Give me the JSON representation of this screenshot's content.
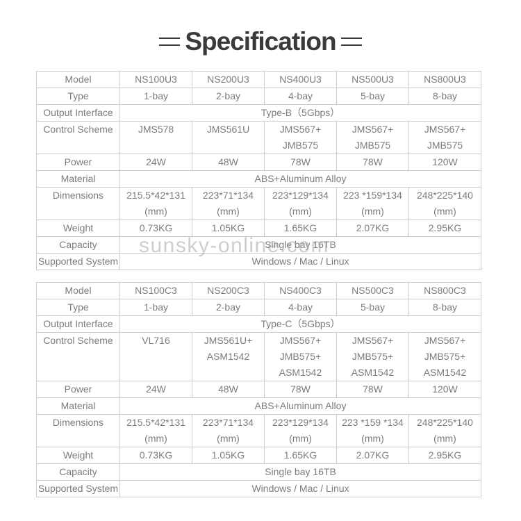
{
  "title": {
    "text": "Specification"
  },
  "watermark": "sunsky-online.com",
  "colors": {
    "title_text": "#3a3a3c",
    "table_border": "#cbcbcb",
    "cell_text": "#7b7c7e",
    "watermark_text": "#a5a5a5",
    "background": "#ffffff"
  },
  "tables": [
    {
      "model": {
        "label": "Model",
        "values": [
          "NS100U3",
          "NS200U3",
          "NS400U3",
          "NS500U3",
          "NS800U3"
        ]
      },
      "type": {
        "label": "Type",
        "values": [
          "1-bay",
          "2-bay",
          "4-bay",
          "5-bay",
          "8-bay"
        ]
      },
      "output_interface": {
        "label": "Output Interface",
        "value": "Type-B（5Gbps）"
      },
      "control_scheme": {
        "label": "Control Scheme",
        "values": [
          "JMS578",
          "JMS561U",
          "JMS567+\nJMB575",
          "JMS567+\nJMB575",
          "JMS567+\nJMB575"
        ]
      },
      "power": {
        "label": "Power",
        "values": [
          "24W",
          "48W",
          "78W",
          "78W",
          "120W"
        ]
      },
      "material": {
        "label": "Material",
        "value": "ABS+Aluminum Alloy"
      },
      "dimensions": {
        "label": "Dimensions",
        "values": [
          "215.5*42*131\n(mm)",
          "223*71*134\n(mm)",
          "223*129*134\n(mm)",
          "223 *159*134\n(mm)",
          "248*225*140\n(mm)"
        ]
      },
      "weight": {
        "label": "Weight",
        "values": [
          "0.73KG",
          "1.05KG",
          "1.65KG",
          "2.07KG",
          "2.95KG"
        ]
      },
      "capacity": {
        "label": "Capacity",
        "value": "Single bay 16TB"
      },
      "supported_system": {
        "label": "Supported System",
        "value": "Windows / Mac / Linux"
      }
    },
    {
      "model": {
        "label": "Model",
        "values": [
          "NS100C3",
          "NS200C3",
          "NS400C3",
          "NS500C3",
          "NS800C3"
        ]
      },
      "type": {
        "label": "Type",
        "values": [
          "1-bay",
          "2-bay",
          "4-bay",
          "5-bay",
          "8-bay"
        ]
      },
      "output_interface": {
        "label": "Output Interface",
        "value": "Type-C（5Gbps）"
      },
      "control_scheme": {
        "label": "Control Scheme",
        "values": [
          "VL716",
          "JMS561U+\nASM1542",
          "JMS567+\nJMB575+\nASM1542",
          "JMS567+\nJMB575+\nASM1542",
          "JMS567+\nJMB575+\nASM1542"
        ]
      },
      "power": {
        "label": "Power",
        "values": [
          "24W",
          "48W",
          "78W",
          "78W",
          "120W"
        ]
      },
      "material": {
        "label": "Material",
        "value": "ABS+Aluminum Alloy"
      },
      "dimensions": {
        "label": "Dimensions",
        "values": [
          "215.5*42*131\n(mm)",
          "223*71*134\n(mm)",
          "223*129*134\n(mm)",
          "223 *159 *134\n(mm)",
          "248*225*140\n(mm)"
        ]
      },
      "weight": {
        "label": "Weight",
        "values": [
          "0.73KG",
          "1.05KG",
          "1.65KG",
          "2.07KG",
          "2.95KG"
        ]
      },
      "capacity": {
        "label": "Capacity",
        "value": "Single bay 16TB"
      },
      "supported_system": {
        "label": "Supported System",
        "value": "Windows / Mac / Linux"
      }
    }
  ]
}
